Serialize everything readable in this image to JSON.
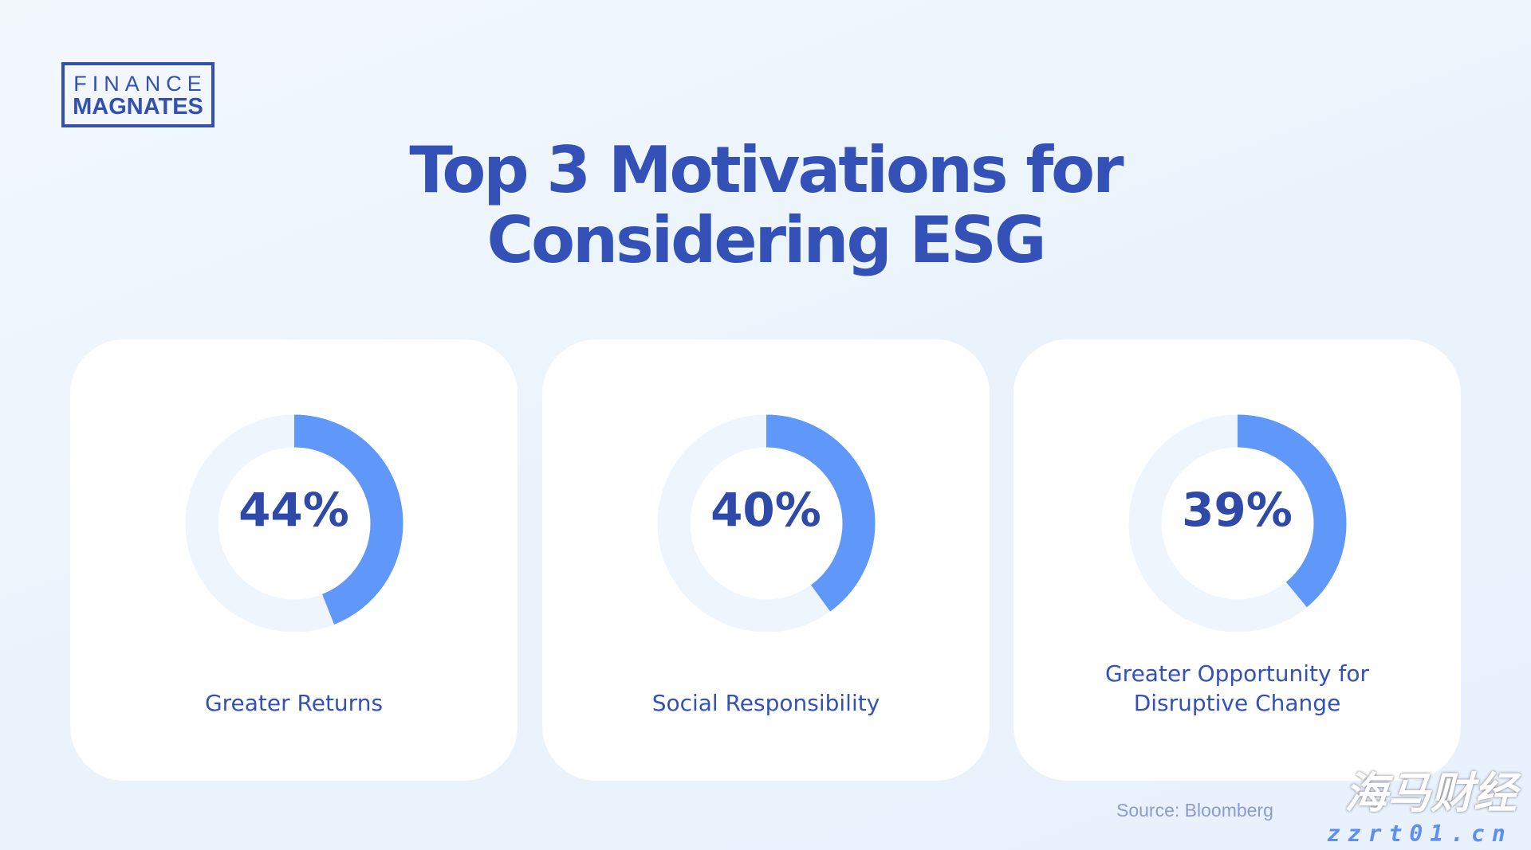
{
  "logo": {
    "line1": "FINANCE",
    "line2": "MAGNATES"
  },
  "title": {
    "line1": "Top 3 Motivations for",
    "line2": "Considering ESG"
  },
  "chart_data": {
    "type": "pie",
    "subtype": "donut",
    "title": "Top 3 Motivations for Considering ESG",
    "items": [
      {
        "label": "Greater Returns",
        "value": 44,
        "display": "44%"
      },
      {
        "label": "Social Responsibility",
        "value": 40,
        "display": "40%"
      },
      {
        "label_lines": [
          "Greater Opportunity for",
          "Disruptive Change"
        ],
        "label": "Greater Opportunity for Disruptive Change",
        "value": 39,
        "display": "39%"
      }
    ],
    "colors": {
      "filled": "#5f98f8",
      "track": "#eef5fd"
    }
  },
  "source": "Source: Bloomberg",
  "watermark": {
    "text": "海马财经",
    "url": "zzrt01.cn"
  }
}
